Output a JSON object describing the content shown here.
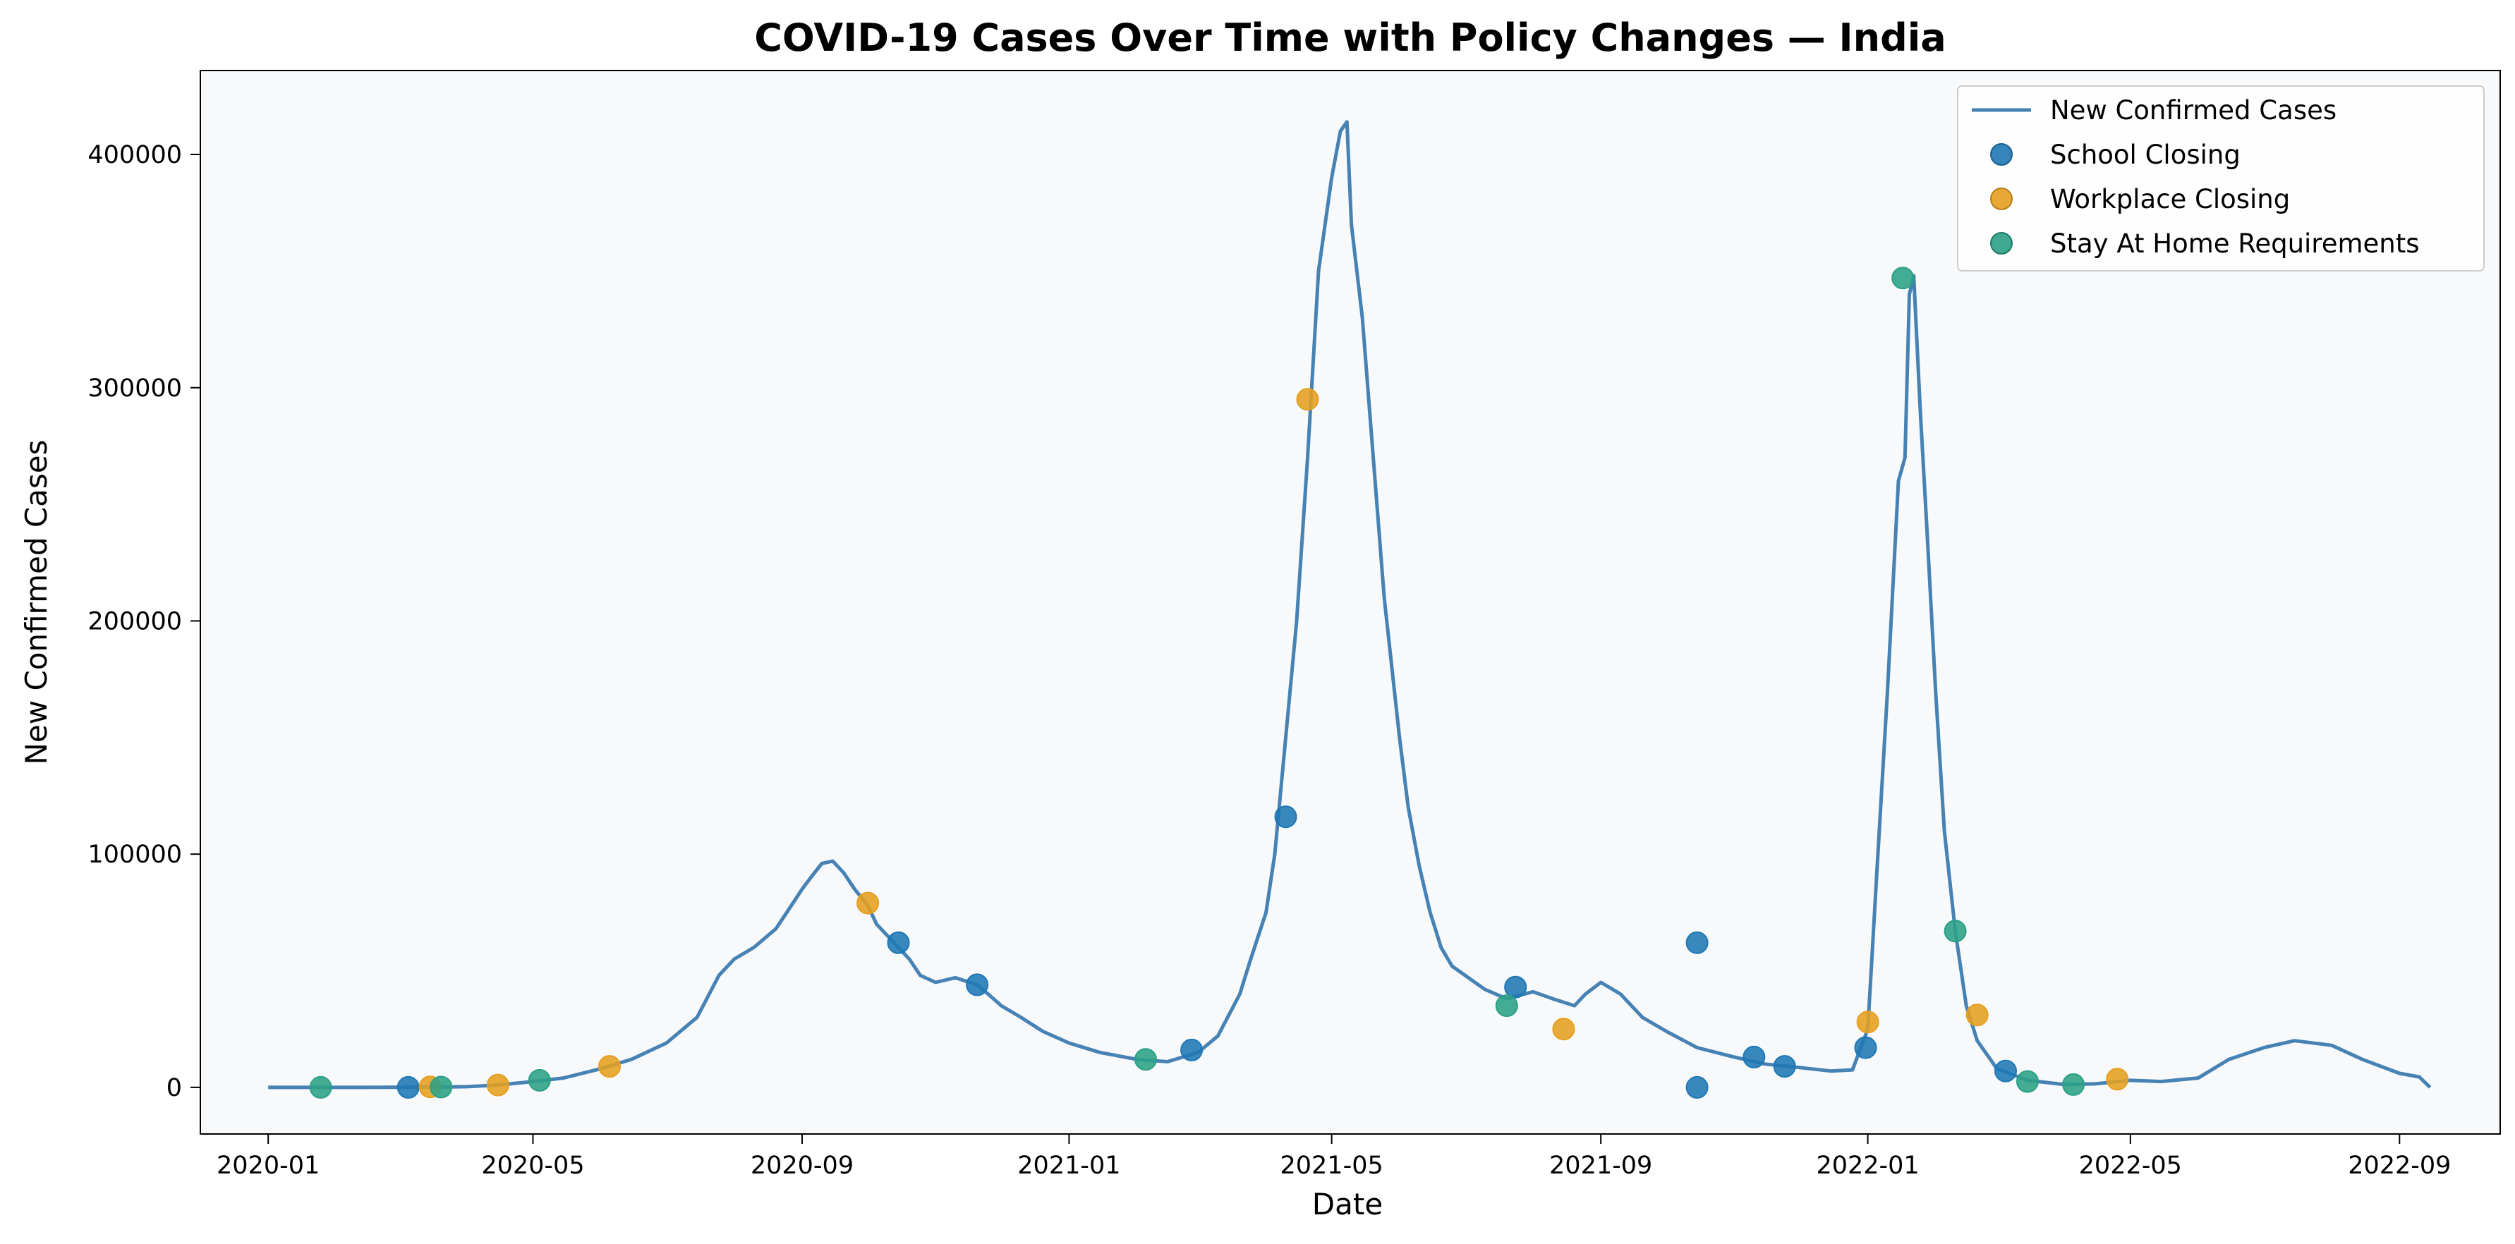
{
  "chart_data": {
    "type": "line",
    "title": "COVID-19 Cases Over Time with Policy Changes — India",
    "xlabel": "Date",
    "ylabel": "New Confirmed Cases",
    "x_axis": {
      "type": "date",
      "range": [
        "2019-12-01",
        "2022-10-17"
      ],
      "ticks": [
        "2020-01",
        "2020-05",
        "2020-09",
        "2021-01",
        "2021-05",
        "2021-09",
        "2022-01",
        "2022-05",
        "2022-09"
      ]
    },
    "y_axis": {
      "range": [
        -20000,
        436000
      ],
      "ticks": [
        0,
        100000,
        200000,
        300000,
        400000
      ],
      "tick_labels": [
        "0",
        "100000",
        "200000",
        "300000",
        "400000"
      ]
    },
    "grid": false,
    "background": "#f7f9fb",
    "legend": {
      "position": "top-right",
      "entries": [
        "New Confirmed Cases",
        "School Closing",
        "Workplace Closing",
        "Stay At Home Requirements"
      ]
    },
    "series": [
      {
        "name": "New Confirmed Cases",
        "kind": "line",
        "color": "#4682b4",
        "points": [
          [
            "2020-01-01",
            0
          ],
          [
            "2020-02-15",
            0
          ],
          [
            "2020-03-15",
            100
          ],
          [
            "2020-04-01",
            300
          ],
          [
            "2020-04-15",
            1000
          ],
          [
            "2020-05-01",
            2500
          ],
          [
            "2020-05-15",
            4000
          ],
          [
            "2020-06-01",
            8000
          ],
          [
            "2020-06-15",
            12000
          ],
          [
            "2020-07-01",
            19000
          ],
          [
            "2020-07-15",
            30000
          ],
          [
            "2020-07-25",
            48000
          ],
          [
            "2020-08-01",
            55000
          ],
          [
            "2020-08-10",
            60000
          ],
          [
            "2020-08-20",
            68000
          ],
          [
            "2020-08-25",
            75000
          ],
          [
            "2020-09-01",
            85000
          ],
          [
            "2020-09-05",
            90000
          ],
          [
            "2020-09-10",
            96000
          ],
          [
            "2020-09-15",
            97000
          ],
          [
            "2020-09-20",
            92000
          ],
          [
            "2020-09-25",
            85000
          ],
          [
            "2020-10-01",
            78000
          ],
          [
            "2020-10-05",
            70000
          ],
          [
            "2020-10-10",
            65000
          ],
          [
            "2020-10-15",
            60000
          ],
          [
            "2020-10-20",
            55000
          ],
          [
            "2020-10-25",
            48000
          ],
          [
            "2020-11-01",
            45000
          ],
          [
            "2020-11-10",
            47000
          ],
          [
            "2020-11-20",
            44000
          ],
          [
            "2020-11-25",
            40000
          ],
          [
            "2020-12-01",
            35000
          ],
          [
            "2020-12-10",
            30000
          ],
          [
            "2020-12-20",
            24000
          ],
          [
            "2021-01-01",
            19000
          ],
          [
            "2021-01-15",
            15000
          ],
          [
            "2021-02-01",
            12000
          ],
          [
            "2021-02-15",
            11000
          ],
          [
            "2021-03-01",
            15000
          ],
          [
            "2021-03-10",
            22000
          ],
          [
            "2021-03-20",
            40000
          ],
          [
            "2021-03-25",
            55000
          ],
          [
            "2021-04-01",
            75000
          ],
          [
            "2021-04-05",
            100000
          ],
          [
            "2021-04-10",
            150000
          ],
          [
            "2021-04-15",
            200000
          ],
          [
            "2021-04-20",
            270000
          ],
          [
            "2021-04-25",
            350000
          ],
          [
            "2021-05-01",
            390000
          ],
          [
            "2021-05-05",
            410000
          ],
          [
            "2021-05-08",
            414000
          ],
          [
            "2021-05-10",
            370000
          ],
          [
            "2021-05-15",
            330000
          ],
          [
            "2021-05-20",
            270000
          ],
          [
            "2021-05-25",
            210000
          ],
          [
            "2021-06-01",
            150000
          ],
          [
            "2021-06-05",
            120000
          ],
          [
            "2021-06-10",
            95000
          ],
          [
            "2021-06-15",
            75000
          ],
          [
            "2021-06-20",
            60000
          ],
          [
            "2021-06-25",
            52000
          ],
          [
            "2021-07-01",
            48000
          ],
          [
            "2021-07-10",
            42000
          ],
          [
            "2021-07-20",
            38000
          ],
          [
            "2021-08-01",
            41000
          ],
          [
            "2021-08-10",
            38000
          ],
          [
            "2021-08-20",
            35000
          ],
          [
            "2021-08-25",
            40000
          ],
          [
            "2021-09-01",
            45000
          ],
          [
            "2021-09-10",
            40000
          ],
          [
            "2021-09-20",
            30000
          ],
          [
            "2021-10-01",
            24000
          ],
          [
            "2021-10-15",
            17000
          ],
          [
            "2021-11-01",
            13000
          ],
          [
            "2021-11-15",
            10000
          ],
          [
            "2021-12-01",
            8500
          ],
          [
            "2021-12-15",
            7000
          ],
          [
            "2021-12-25",
            7500
          ],
          [
            "2022-01-01",
            25000
          ],
          [
            "2022-01-05",
            90000
          ],
          [
            "2022-01-10",
            170000
          ],
          [
            "2022-01-15",
            260000
          ],
          [
            "2022-01-18",
            270000
          ],
          [
            "2022-01-20",
            340000
          ],
          [
            "2022-01-22",
            348000
          ],
          [
            "2022-01-25",
            290000
          ],
          [
            "2022-01-28",
            240000
          ],
          [
            "2022-02-01",
            170000
          ],
          [
            "2022-02-05",
            110000
          ],
          [
            "2022-02-10",
            67000
          ],
          [
            "2022-02-15",
            35000
          ],
          [
            "2022-02-20",
            20000
          ],
          [
            "2022-03-01",
            8000
          ],
          [
            "2022-03-15",
            3000
          ],
          [
            "2022-04-01",
            1200
          ],
          [
            "2022-04-15",
            1500
          ],
          [
            "2022-05-01",
            3000
          ],
          [
            "2022-05-15",
            2500
          ],
          [
            "2022-06-01",
            4000
          ],
          [
            "2022-06-15",
            12000
          ],
          [
            "2022-07-01",
            17000
          ],
          [
            "2022-07-15",
            20000
          ],
          [
            "2022-08-01",
            18000
          ],
          [
            "2022-08-15",
            12000
          ],
          [
            "2022-09-01",
            6000
          ],
          [
            "2022-09-10",
            4500
          ],
          [
            "2022-09-15",
            0
          ]
        ]
      },
      {
        "name": "School Closing",
        "kind": "scatter",
        "color": "#1f77b4",
        "points": [
          [
            "2020-03-05",
            0
          ],
          [
            "2021-10-15",
            62000
          ],
          [
            "2021-10-15",
            0
          ],
          [
            "2020-10-15",
            62000
          ],
          [
            "2020-11-20",
            44000
          ],
          [
            "2021-02-26",
            16000
          ],
          [
            "2021-04-10",
            116000
          ],
          [
            "2021-07-24",
            43000
          ],
          [
            "2021-11-10",
            13000
          ],
          [
            "2021-11-24",
            9000
          ],
          [
            "2021-12-31",
            17000
          ],
          [
            "2022-03-05",
            7000
          ]
        ]
      },
      {
        "name": "Workplace Closing",
        "kind": "scatter",
        "color": "#e69f1f",
        "points": [
          [
            "2020-03-15",
            200
          ],
          [
            "2020-04-15",
            1000
          ],
          [
            "2020-06-05",
            9000
          ],
          [
            "2020-10-01",
            79000
          ],
          [
            "2021-04-20",
            295000
          ],
          [
            "2021-08-15",
            25000
          ],
          [
            "2022-01-01",
            28000
          ],
          [
            "2022-02-20",
            31000
          ],
          [
            "2022-04-25",
            3500
          ]
        ]
      },
      {
        "name": "Stay At Home Requirements",
        "kind": "scatter",
        "color": "#2ca085",
        "points": [
          [
            "2020-01-25",
            0
          ],
          [
            "2020-03-20",
            100
          ],
          [
            "2020-05-04",
            3000
          ],
          [
            "2021-02-05",
            12000
          ],
          [
            "2021-07-20",
            35000
          ],
          [
            "2022-01-17",
            347000
          ],
          [
            "2022-02-10",
            67000
          ],
          [
            "2022-03-15",
            2500
          ],
          [
            "2022-04-05",
            1200
          ]
        ]
      }
    ]
  }
}
